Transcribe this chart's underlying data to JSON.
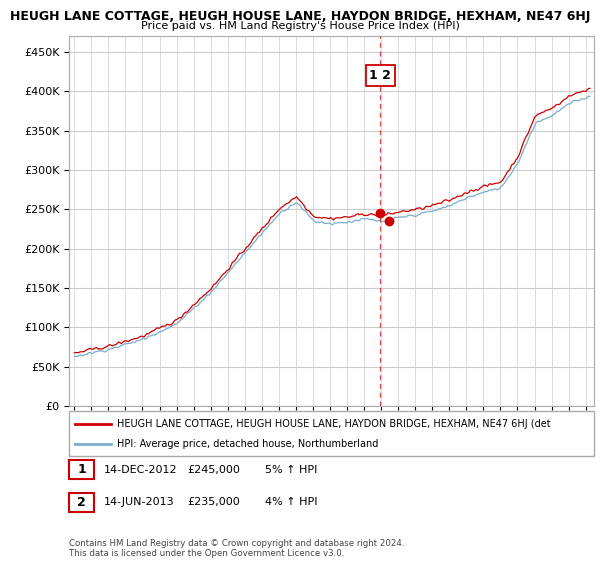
{
  "title": "HEUGH LANE COTTAGE, HEUGH HOUSE LANE, HAYDON BRIDGE, HEXHAM, NE47 6HJ",
  "subtitle": "Price paid vs. HM Land Registry's House Price Index (HPI)",
  "legend_red": "HEUGH LANE COTTAGE, HEUGH HOUSE LANE, HAYDON BRIDGE, HEXHAM, NE47 6HJ (det",
  "legend_blue": "HPI: Average price, detached house, Northumberland",
  "transaction1_num": "1",
  "transaction1_date": "14-DEC-2012",
  "transaction1_price": "£245,000",
  "transaction1_hpi": "5% ↑ HPI",
  "transaction2_num": "2",
  "transaction2_date": "14-JUN-2013",
  "transaction2_price": "£235,000",
  "transaction2_hpi": "4% ↑ HPI",
  "footer": "Contains HM Land Registry data © Crown copyright and database right 2024.\nThis data is licensed under the Open Government Licence v3.0.",
  "ylim": [
    0,
    470000
  ],
  "yticks": [
    0,
    50000,
    100000,
    150000,
    200000,
    250000,
    300000,
    350000,
    400000,
    450000
  ],
  "red_color": "#cc0000",
  "blue_color": "#7aadcf",
  "vline_color": "#cc0000",
  "background_color": "#ffffff",
  "grid_color": "#cccccc"
}
